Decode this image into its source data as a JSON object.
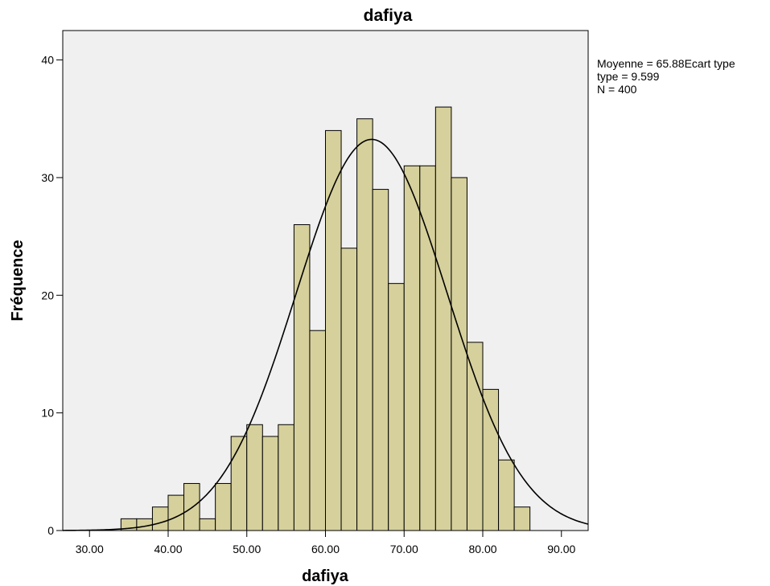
{
  "chart_data": {
    "type": "bar",
    "title": "dafiya",
    "xlabel": "dafiya",
    "ylabel": "Fréquence",
    "xlim": [
      26.6,
      93.4
    ],
    "ylim": [
      0,
      42.5
    ],
    "x_ticks": [
      "30.00",
      "40.00",
      "50.00",
      "60.00",
      "70.00",
      "80.00",
      "90.00"
    ],
    "x_tick_values": [
      30,
      40,
      50,
      60,
      70,
      80,
      90
    ],
    "y_ticks": [
      "0",
      "10",
      "20",
      "30",
      "40"
    ],
    "y_tick_values": [
      0,
      10,
      20,
      30,
      40
    ],
    "bin_width": 2,
    "bin_starts": [
      34,
      36,
      38,
      40,
      42,
      44,
      46,
      48,
      50,
      52,
      54,
      56,
      58,
      60,
      62,
      64,
      66,
      68,
      70,
      72,
      74,
      76,
      78,
      80,
      82,
      84
    ],
    "values": [
      1,
      1,
      2,
      3,
      4,
      1,
      4,
      8,
      9,
      8,
      9,
      26,
      17,
      34,
      24,
      35,
      29,
      21,
      31,
      31,
      36,
      30,
      16,
      12,
      6,
      2
    ],
    "normal_curve": {
      "mean": 65.88,
      "sd": 9.599,
      "n": 400
    },
    "stats_lines": [
      "Moyenne = 65.88Ecart type",
      " type = 9.599",
      "N = 400"
    ],
    "colors": {
      "bar_fill": "#d6d09c",
      "bar_stroke": "#000000",
      "plot_bg": "#f0f0f0",
      "curve": "#000000"
    }
  }
}
